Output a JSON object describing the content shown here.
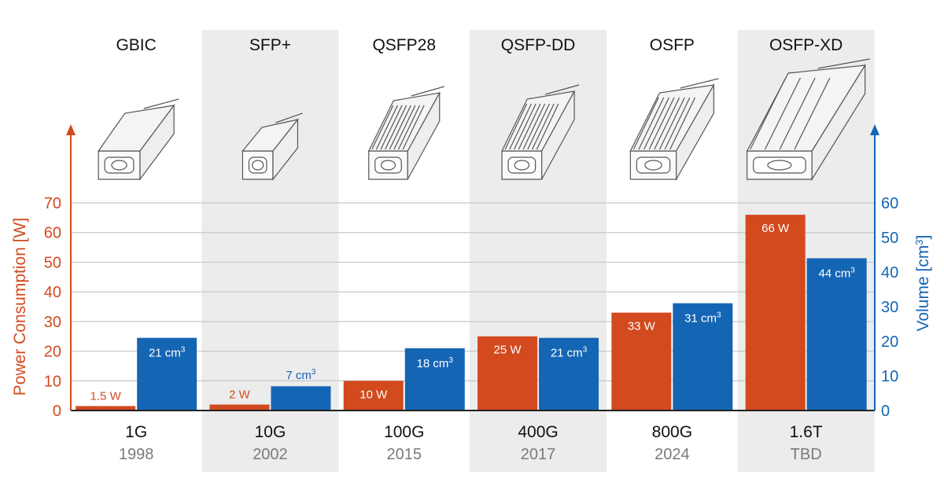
{
  "chart_data": {
    "type": "bar",
    "left_axis": {
      "label": "Power Consumption [W]",
      "ticks": [
        0,
        10,
        20,
        30,
        40,
        50,
        60,
        70
      ],
      "range": [
        0,
        70
      ],
      "color": "#d24a1e"
    },
    "right_axis": {
      "label_text": "Volume [cm",
      "label_sup": "3",
      "label_end": "]",
      "ticks": [
        0,
        10,
        20,
        30,
        40,
        50,
        60
      ],
      "range": [
        0,
        60
      ],
      "color": "#1565b5"
    },
    "grid": true,
    "categories": [
      {
        "form_factor": "GBIC",
        "speed": "1G",
        "year": "1998"
      },
      {
        "form_factor": "SFP+",
        "speed": "10G",
        "year": "2002"
      },
      {
        "form_factor": "QSFP28",
        "speed": "100G",
        "year": "2015"
      },
      {
        "form_factor": "QSFP-DD",
        "speed": "400G",
        "year": "2017"
      },
      {
        "form_factor": "OSFP",
        "speed": "800G",
        "year": "2024"
      },
      {
        "form_factor": "OSFP-XD",
        "speed": "1.6T",
        "year": "TBD"
      }
    ],
    "series": [
      {
        "name": "",
        "axis": "left",
        "color": "#d24a1e",
        "values": [
          1.5,
          2,
          10,
          25,
          33,
          66
        ],
        "labels": [
          "1.5 W",
          "2 W",
          "10 W",
          "25 W",
          "33 W",
          "66 W"
        ]
      },
      {
        "name": "",
        "axis": "right",
        "color": "#1565b5",
        "values": [
          21,
          7,
          18,
          21,
          31,
          44
        ],
        "labels": [
          "21 cm",
          "7 cm",
          "18 cm",
          "21 cm",
          "31 cm",
          "44 cm"
        ],
        "label_sup": "3"
      }
    ]
  }
}
